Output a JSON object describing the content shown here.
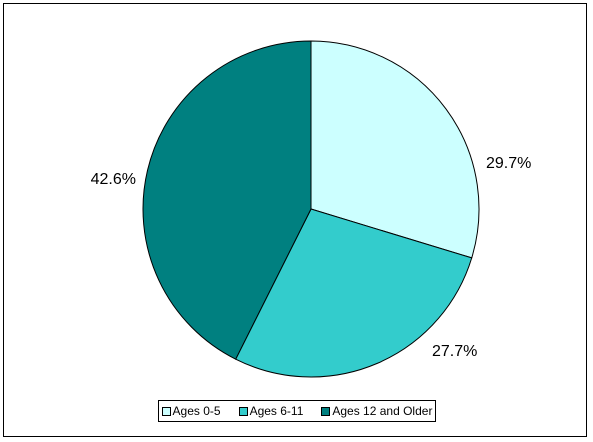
{
  "chart_data": {
    "type": "pie",
    "title": "",
    "categories": [
      "Ages 0-5",
      "Ages 6-11",
      "Ages 12 and Older"
    ],
    "values": [
      29.7,
      27.7,
      42.6
    ],
    "labels": [
      "29.7%",
      "27.7%",
      "42.6%"
    ],
    "colors": [
      "#CCFFFF",
      "#33CCCC",
      "#008080"
    ],
    "start_angle_deg": 0,
    "direction": "clockwise",
    "legend_position": "bottom"
  }
}
